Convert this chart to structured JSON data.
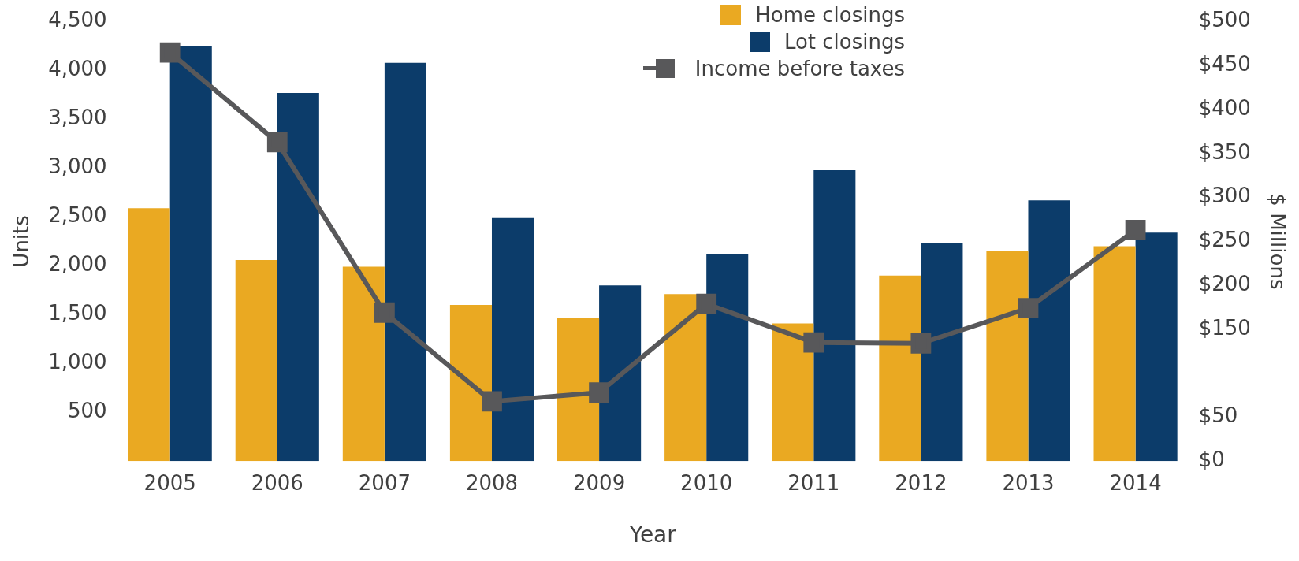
{
  "chart_data": {
    "type": "bar",
    "xlabel": "Year",
    "ylabel": "Units",
    "y2label": "$ Millions",
    "categories": [
      "2005",
      "2006",
      "2007",
      "2008",
      "2009",
      "2010",
      "2011",
      "2012",
      "2013",
      "2014"
    ],
    "series": [
      {
        "name": "Home closings",
        "color": "#eaa922",
        "values": [
          2590,
          2060,
          1990,
          1600,
          1470,
          1710,
          1410,
          1900,
          2150,
          2200
        ]
      },
      {
        "name": "Lot closings",
        "color": "#0c3c6a",
        "values": [
          4250,
          3770,
          4080,
          2490,
          1800,
          2120,
          2980,
          2230,
          2670,
          2340
        ]
      },
      {
        "name": "Income before taxes",
        "type": "line",
        "axis": "y2",
        "color": "#58585a",
        "values": [
          465,
          363,
          169,
          68,
          78,
          179,
          135,
          134,
          174,
          263
        ]
      }
    ],
    "ylim": [
      0,
      4500
    ],
    "yticks": [
      {
        "value": 500,
        "label": "500"
      },
      {
        "value": 1000,
        "label": "1,000"
      },
      {
        "value": 1500,
        "label": "1,500"
      },
      {
        "value": 2000,
        "label": "2,000"
      },
      {
        "value": 2500,
        "label": "2,500"
      },
      {
        "value": 3000,
        "label": "3,000"
      },
      {
        "value": 3500,
        "label": "3,500"
      },
      {
        "value": 4000,
        "label": "4,000"
      },
      {
        "value": 4500,
        "label": "4,500"
      }
    ],
    "y2lim": [
      0,
      500
    ],
    "y2ticks": [
      {
        "value": 0,
        "label": "$0"
      },
      {
        "value": 50,
        "label": "$50"
      },
      {
        "value": 150,
        "label": "$150"
      },
      {
        "value": 200,
        "label": "$200"
      },
      {
        "value": 250,
        "label": "$250"
      },
      {
        "value": 300,
        "label": "$300"
      },
      {
        "value": 350,
        "label": "$350"
      },
      {
        "value": 400,
        "label": "$400"
      },
      {
        "value": 450,
        "label": "$450"
      },
      {
        "value": 500,
        "label": "$500"
      }
    ],
    "grid": false,
    "legend": "top right",
    "marker": "square",
    "line_style": "solid"
  }
}
